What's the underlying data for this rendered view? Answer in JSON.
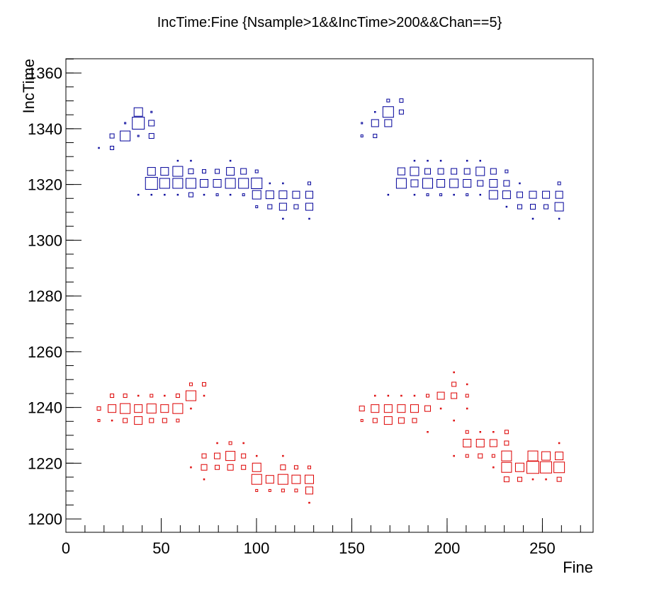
{
  "chart_data": {
    "type": "box2d",
    "title": "IncTime:Fine {Nsample>1&&IncTime>200&&Chan==5}",
    "x_label": "Fine",
    "y_label": "IncTime",
    "xlim": [
      0,
      276.6
    ],
    "ylim": [
      1195.2,
      1365.1
    ],
    "xticks": [
      0,
      50,
      100,
      150,
      200,
      250
    ],
    "yticks": [
      1200,
      1220,
      1240,
      1260,
      1280,
      1300,
      1320,
      1340,
      1360
    ],
    "x_minor_divisions": 5,
    "y_minor_divisions": 4,
    "series": [
      {
        "color": "#000099",
        "x": [
          17.3,
          24.2,
          24.2,
          31.1,
          31.1,
          38.0,
          38.0,
          38.0,
          38.0,
          44.9,
          44.9,
          44.9,
          44.9,
          44.9,
          44.9,
          51.8,
          51.8,
          51.8,
          58.7,
          58.7,
          58.7,
          58.7,
          65.6,
          65.6,
          65.6,
          65.6,
          72.5,
          72.5,
          72.5,
          79.4,
          79.4,
          79.4,
          86.3,
          86.3,
          86.3,
          86.3,
          93.2,
          93.2,
          93.2,
          100.1,
          100.1,
          100.1,
          100.1,
          107.0,
          107.0,
          107.0,
          113.9,
          113.9,
          113.9,
          113.9,
          120.8,
          120.8,
          127.7,
          127.7,
          127.7,
          127.7,
          155.3,
          155.3,
          162.2,
          162.2,
          162.2,
          169.1,
          169.1,
          169.1,
          169.1,
          176.0,
          176.0,
          176.0,
          176.0,
          182.9,
          182.9,
          182.9,
          182.9,
          189.8,
          189.8,
          189.8,
          189.8,
          196.7,
          196.7,
          196.7,
          196.7,
          203.6,
          203.6,
          203.6,
          210.5,
          210.5,
          210.5,
          210.5,
          217.4,
          217.4,
          217.4,
          217.4,
          224.3,
          224.3,
          224.3,
          231.2,
          231.2,
          231.2,
          231.2,
          238.1,
          238.1,
          238.1,
          245.0,
          245.0,
          245.0,
          251.9,
          251.9,
          258.8,
          258.8,
          258.8,
          258.8
        ],
        "values": [
          1333.1,
          1337.4,
          1333.1,
          1342.0,
          1337.4,
          1346.0,
          1342.0,
          1337.4,
          1316.3,
          1346.0,
          1342.0,
          1337.4,
          1324.7,
          1320.4,
          1316.3,
          1324.7,
          1320.4,
          1316.3,
          1328.5,
          1324.7,
          1320.4,
          1316.3,
          1328.5,
          1324.7,
          1320.4,
          1316.3,
          1324.7,
          1320.4,
          1316.3,
          1324.7,
          1320.4,
          1316.3,
          1328.5,
          1324.7,
          1320.4,
          1316.3,
          1324.7,
          1320.4,
          1316.3,
          1324.7,
          1320.4,
          1316.3,
          1312.0,
          1320.4,
          1316.3,
          1312.0,
          1320.4,
          1316.3,
          1312.0,
          1307.7,
          1316.3,
          1312.0,
          1320.4,
          1316.3,
          1312.0,
          1307.7,
          1342.0,
          1337.4,
          1346.0,
          1342.0,
          1337.4,
          1350.1,
          1346.0,
          1342.0,
          1316.3,
          1350.1,
          1346.0,
          1324.7,
          1320.4,
          1328.5,
          1324.7,
          1320.4,
          1316.3,
          1328.5,
          1324.7,
          1320.4,
          1316.3,
          1328.5,
          1324.7,
          1320.4,
          1316.3,
          1324.7,
          1320.4,
          1316.3,
          1328.5,
          1324.7,
          1320.4,
          1316.3,
          1328.5,
          1324.7,
          1320.4,
          1316.3,
          1324.7,
          1320.4,
          1316.3,
          1324.7,
          1320.4,
          1316.3,
          1312.0,
          1320.4,
          1316.3,
          1312.0,
          1316.3,
          1312.0,
          1307.7,
          1316.3,
          1312.0,
          1320.4,
          1316.3,
          1312.0,
          1307.7
        ],
        "sizes": [
          1,
          6,
          5,
          2,
          14,
          12,
          17,
          2,
          1,
          2,
          8,
          7,
          11,
          17,
          1,
          11,
          14,
          1,
          1,
          14,
          14,
          1,
          1,
          7,
          14,
          6,
          5,
          11,
          1,
          6,
          11,
          3,
          1,
          11,
          14,
          1,
          8,
          14,
          3,
          4,
          15,
          12,
          3,
          1,
          11,
          6,
          1,
          11,
          10,
          1,
          10,
          6,
          4,
          10,
          10,
          1,
          2,
          3,
          1,
          10,
          5,
          4,
          15,
          10,
          1,
          5,
          6,
          10,
          14,
          1,
          12,
          10,
          1,
          1,
          8,
          14,
          3,
          1,
          8,
          11,
          3,
          8,
          12,
          1,
          1,
          8,
          11,
          3,
          1,
          12,
          8,
          1,
          8,
          11,
          12,
          4,
          8,
          11,
          1,
          1,
          8,
          6,
          10,
          7,
          1,
          10,
          6,
          4,
          10,
          12,
          1
        ]
      },
      {
        "color": "#dd0000",
        "x": [
          17.3,
          17.3,
          24.2,
          24.2,
          24.2,
          31.1,
          31.1,
          31.1,
          38.0,
          38.0,
          38.0,
          44.9,
          44.9,
          44.9,
          51.8,
          51.8,
          51.8,
          58.7,
          58.7,
          58.7,
          65.6,
          65.6,
          65.6,
          65.6,
          72.5,
          72.5,
          72.5,
          72.5,
          72.5,
          79.4,
          79.4,
          79.4,
          86.3,
          86.3,
          86.3,
          93.2,
          93.2,
          93.2,
          100.1,
          100.1,
          100.1,
          100.1,
          107.0,
          107.0,
          113.9,
          113.9,
          113.9,
          113.9,
          120.8,
          120.8,
          120.8,
          127.7,
          127.7,
          127.7,
          127.7,
          155.3,
          155.3,
          162.2,
          162.2,
          162.2,
          169.1,
          169.1,
          169.1,
          176.0,
          176.0,
          176.0,
          182.9,
          182.9,
          182.9,
          189.8,
          189.8,
          189.8,
          196.7,
          196.7,
          203.6,
          203.6,
          203.6,
          203.6,
          203.6,
          210.5,
          210.5,
          210.5,
          210.5,
          210.5,
          210.5,
          217.4,
          217.4,
          217.4,
          224.3,
          224.3,
          224.3,
          224.3,
          231.2,
          231.2,
          231.2,
          231.2,
          231.2,
          238.1,
          238.1,
          245.0,
          245.0,
          245.0,
          251.9,
          251.9,
          251.9,
          258.8,
          258.8,
          258.8,
          258.8
        ],
        "values": [
          1239.6,
          1235.3,
          1244.2,
          1239.6,
          1235.3,
          1244.2,
          1239.6,
          1235.3,
          1244.2,
          1239.6,
          1235.3,
          1244.2,
          1239.6,
          1235.3,
          1244.2,
          1239.6,
          1235.3,
          1244.2,
          1239.6,
          1235.3,
          1248.3,
          1244.2,
          1239.6,
          1218.5,
          1248.3,
          1244.2,
          1222.6,
          1218.5,
          1214.2,
          1227.2,
          1222.6,
          1218.5,
          1227.2,
          1222.6,
          1218.5,
          1227.2,
          1222.6,
          1218.5,
          1222.6,
          1218.5,
          1214.2,
          1210.2,
          1214.2,
          1210.2,
          1222.6,
          1218.5,
          1214.2,
          1210.2,
          1218.5,
          1214.2,
          1210.2,
          1218.5,
          1214.2,
          1210.2,
          1205.8,
          1239.6,
          1235.3,
          1244.2,
          1239.6,
          1235.3,
          1244.2,
          1239.6,
          1235.3,
          1244.2,
          1239.6,
          1235.3,
          1244.2,
          1239.6,
          1235.3,
          1244.2,
          1239.6,
          1231.2,
          1244.2,
          1239.6,
          1252.6,
          1248.3,
          1244.2,
          1235.3,
          1222.6,
          1248.3,
          1244.2,
          1239.6,
          1231.2,
          1227.2,
          1222.6,
          1231.2,
          1227.2,
          1222.6,
          1231.2,
          1227.2,
          1222.6,
          1218.5,
          1231.2,
          1227.2,
          1222.6,
          1218.5,
          1214.2,
          1218.5,
          1214.2,
          1222.6,
          1218.5,
          1214.2,
          1222.6,
          1218.5,
          1214.2,
          1227.2,
          1222.6,
          1218.5,
          1214.2
        ],
        "sizes": [
          5,
          3,
          5,
          11,
          1,
          5,
          14,
          6,
          1,
          11,
          11,
          4,
          13,
          6,
          1,
          11,
          6,
          5,
          14,
          4,
          4,
          14,
          1,
          1,
          5,
          1,
          6,
          8,
          1,
          1,
          8,
          6,
          4,
          13,
          8,
          1,
          6,
          6,
          1,
          12,
          14,
          3,
          11,
          3,
          1,
          7,
          14,
          4,
          5,
          12,
          4,
          4,
          12,
          10,
          1,
          7,
          3,
          1,
          11,
          6,
          1,
          11,
          11,
          1,
          11,
          8,
          1,
          11,
          6,
          4,
          8,
          1,
          10,
          1,
          1,
          6,
          8,
          1,
          1,
          1,
          4,
          1,
          4,
          11,
          4,
          1,
          11,
          6,
          1,
          10,
          4,
          1,
          5,
          6,
          14,
          14,
          7,
          12,
          6,
          14,
          17,
          1,
          12,
          16,
          1,
          1,
          11,
          15,
          6
        ]
      }
    ]
  }
}
